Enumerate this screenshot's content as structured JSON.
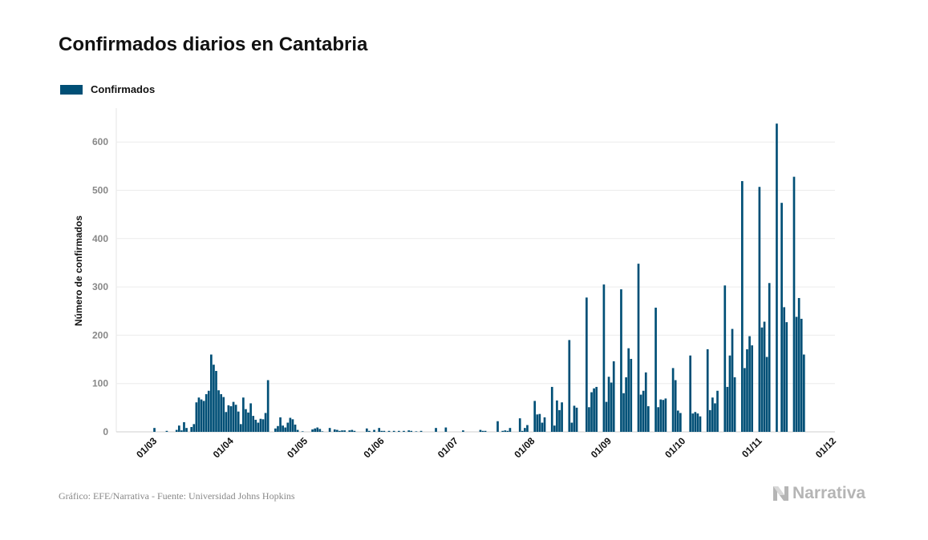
{
  "chart_data": {
    "type": "bar",
    "title": "Confirmados diarios en Cantabria",
    "xlabel": "",
    "ylabel": "Número de confirmados",
    "ylim": [
      0,
      670
    ],
    "xlim": [
      "14/02",
      "01/12"
    ],
    "grid": true,
    "legend_position": "top-left",
    "y_ticks": [
      "0",
      "100",
      "200",
      "300",
      "400",
      "500",
      "600"
    ],
    "x_ticks": [
      "01/03",
      "01/04",
      "01/05",
      "01/06",
      "01/07",
      "01/08",
      "01/09",
      "01/10",
      "01/11",
      "01/12"
    ],
    "series": [
      {
        "name": "Confirmados",
        "color": "#004f76",
        "points": [
          [
            "29/02",
            8
          ],
          [
            "05/03",
            2
          ],
          [
            "09/03",
            4
          ],
          [
            "10/03",
            13
          ],
          [
            "11/03",
            3
          ],
          [
            "12/03",
            20
          ],
          [
            "13/03",
            8
          ],
          [
            "15/03",
            10
          ],
          [
            "16/03",
            16
          ],
          [
            "17/03",
            61
          ],
          [
            "18/03",
            71
          ],
          [
            "19/03",
            67
          ],
          [
            "20/03",
            64
          ],
          [
            "21/03",
            78
          ],
          [
            "22/03",
            85
          ],
          [
            "23/03",
            160
          ],
          [
            "24/03",
            139
          ],
          [
            "25/03",
            126
          ],
          [
            "26/03",
            86
          ],
          [
            "27/03",
            78
          ],
          [
            "28/03",
            72
          ],
          [
            "29/03",
            41
          ],
          [
            "30/03",
            55
          ],
          [
            "31/03",
            53
          ],
          [
            "01/04",
            62
          ],
          [
            "02/04",
            56
          ],
          [
            "03/04",
            42
          ],
          [
            "04/04",
            16
          ],
          [
            "05/04",
            71
          ],
          [
            "06/04",
            47
          ],
          [
            "07/04",
            40
          ],
          [
            "08/04",
            59
          ],
          [
            "09/04",
            33
          ],
          [
            "10/04",
            25
          ],
          [
            "11/04",
            19
          ],
          [
            "12/04",
            27
          ],
          [
            "13/04",
            26
          ],
          [
            "14/04",
            39
          ],
          [
            "15/04",
            107
          ],
          [
            "18/04",
            7
          ],
          [
            "19/04",
            12
          ],
          [
            "20/04",
            30
          ],
          [
            "21/04",
            13
          ],
          [
            "22/04",
            9
          ],
          [
            "23/04",
            19
          ],
          [
            "24/04",
            29
          ],
          [
            "25/04",
            26
          ],
          [
            "26/04",
            15
          ],
          [
            "27/04",
            4
          ],
          [
            "29/04",
            1
          ],
          [
            "03/05",
            5
          ],
          [
            "04/05",
            7
          ],
          [
            "05/05",
            9
          ],
          [
            "06/05",
            6
          ],
          [
            "07/05",
            1
          ],
          [
            "10/05",
            8
          ],
          [
            "12/05",
            5
          ],
          [
            "13/05",
            4
          ],
          [
            "14/05",
            2
          ],
          [
            "15/05",
            3
          ],
          [
            "16/05",
            3
          ],
          [
            "18/05",
            3
          ],
          [
            "19/05",
            4
          ],
          [
            "20/05",
            2
          ],
          [
            "25/05",
            7
          ],
          [
            "26/05",
            2
          ],
          [
            "28/05",
            4
          ],
          [
            "30/05",
            8
          ],
          [
            "31/05",
            2
          ],
          [
            "01/06",
            2
          ],
          [
            "03/06",
            2
          ],
          [
            "05/06",
            2
          ],
          [
            "07/06",
            2
          ],
          [
            "09/06",
            2
          ],
          [
            "11/06",
            3
          ],
          [
            "12/06",
            2
          ],
          [
            "14/06",
            1
          ],
          [
            "16/06",
            2
          ],
          [
            "22/06",
            8
          ],
          [
            "26/06",
            9
          ],
          [
            "03/07",
            3
          ],
          [
            "10/07",
            4
          ],
          [
            "11/07",
            2
          ],
          [
            "12/07",
            2
          ],
          [
            "17/07",
            22
          ],
          [
            "19/07",
            2
          ],
          [
            "20/07",
            3
          ],
          [
            "21/07",
            2
          ],
          [
            "22/07",
            8
          ],
          [
            "26/07",
            28
          ],
          [
            "27/07",
            2
          ],
          [
            "28/07",
            8
          ],
          [
            "29/07",
            14
          ],
          [
            "01/08",
            64
          ],
          [
            "02/08",
            36
          ],
          [
            "03/08",
            37
          ],
          [
            "04/08",
            19
          ],
          [
            "05/08",
            30
          ],
          [
            "08/08",
            93
          ],
          [
            "09/08",
            13
          ],
          [
            "10/08",
            65
          ],
          [
            "11/08",
            45
          ],
          [
            "12/08",
            61
          ],
          [
            "15/08",
            190
          ],
          [
            "16/08",
            19
          ],
          [
            "17/08",
            54
          ],
          [
            "18/08",
            50
          ],
          [
            "22/08",
            278
          ],
          [
            "23/08",
            51
          ],
          [
            "24/08",
            82
          ],
          [
            "25/08",
            90
          ],
          [
            "26/08",
            93
          ],
          [
            "29/08",
            305
          ],
          [
            "30/08",
            62
          ],
          [
            "31/08",
            114
          ],
          [
            "01/09",
            102
          ],
          [
            "02/09",
            146
          ],
          [
            "05/09",
            295
          ],
          [
            "06/09",
            80
          ],
          [
            "07/09",
            113
          ],
          [
            "08/09",
            173
          ],
          [
            "09/09",
            151
          ],
          [
            "12/09",
            348
          ],
          [
            "13/09",
            77
          ],
          [
            "14/09",
            85
          ],
          [
            "15/09",
            123
          ],
          [
            "16/09",
            53
          ],
          [
            "19/09",
            257
          ],
          [
            "20/09",
            51
          ],
          [
            "21/09",
            67
          ],
          [
            "22/09",
            66
          ],
          [
            "23/09",
            69
          ],
          [
            "26/09",
            132
          ],
          [
            "27/09",
            107
          ],
          [
            "28/09",
            44
          ],
          [
            "29/09",
            39
          ],
          [
            "03/10",
            158
          ],
          [
            "04/10",
            38
          ],
          [
            "05/10",
            41
          ],
          [
            "06/10",
            38
          ],
          [
            "07/10",
            32
          ],
          [
            "10/10",
            171
          ],
          [
            "11/10",
            45
          ],
          [
            "12/10",
            71
          ],
          [
            "13/10",
            59
          ],
          [
            "14/10",
            85
          ],
          [
            "17/10",
            303
          ],
          [
            "18/10",
            93
          ],
          [
            "19/10",
            158
          ],
          [
            "20/10",
            213
          ],
          [
            "21/10",
            113
          ],
          [
            "24/10",
            519
          ],
          [
            "25/10",
            132
          ],
          [
            "26/10",
            171
          ],
          [
            "27/10",
            198
          ],
          [
            "28/10",
            179
          ],
          [
            "31/10",
            507
          ],
          [
            "01/11",
            216
          ],
          [
            "02/11",
            228
          ],
          [
            "03/11",
            155
          ],
          [
            "04/11",
            308
          ],
          [
            "07/11",
            638
          ],
          [
            "09/11",
            474
          ],
          [
            "10/11",
            258
          ],
          [
            "11/11",
            227
          ],
          [
            "14/11",
            528
          ],
          [
            "15/11",
            238
          ],
          [
            "16/11",
            277
          ],
          [
            "17/11",
            234
          ],
          [
            "18/11",
            160
          ]
        ]
      }
    ]
  },
  "legend": {
    "label": "Confirmados"
  },
  "footer": {
    "source": "Gráfico: EFE/Narrativa - Fuente: Universidad Johns Hopkins",
    "logo_text": "Narrativa"
  }
}
